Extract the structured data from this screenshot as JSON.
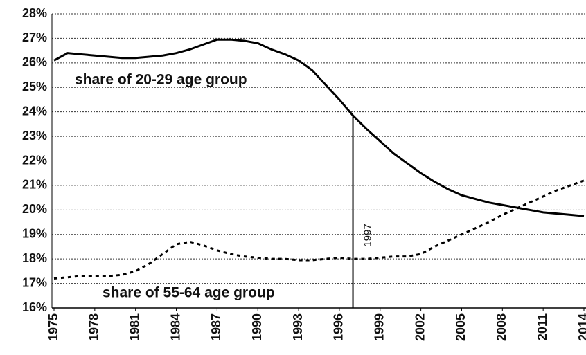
{
  "chart_data": {
    "type": "line",
    "x": [
      1975,
      1976,
      1977,
      1978,
      1979,
      1980,
      1981,
      1982,
      1983,
      1984,
      1985,
      1986,
      1987,
      1988,
      1989,
      1990,
      1991,
      1992,
      1993,
      1994,
      1995,
      1996,
      1997,
      1998,
      1999,
      2000,
      2001,
      2002,
      2003,
      2004,
      2005,
      2006,
      2007,
      2008,
      2009,
      2010,
      2011,
      2012,
      2013,
      2014
    ],
    "series": [
      {
        "name": "share of 20-29 age group",
        "color": "#000000",
        "dash": "solid",
        "values": [
          26.1,
          26.4,
          26.35,
          26.3,
          26.25,
          26.2,
          26.2,
          26.25,
          26.3,
          26.4,
          26.55,
          26.75,
          26.95,
          26.95,
          26.9,
          26.8,
          26.55,
          26.35,
          26.1,
          25.7,
          25.1,
          24.5,
          23.85,
          23.3,
          22.8,
          22.3,
          21.9,
          21.5,
          21.15,
          20.85,
          20.6,
          20.45,
          20.3,
          20.2,
          20.1,
          20.0,
          19.9,
          19.85,
          19.8,
          19.75
        ]
      },
      {
        "name": "share of 55-64 age group",
        "color": "#000000",
        "dash": "dotted",
        "values": [
          17.2,
          17.25,
          17.3,
          17.3,
          17.3,
          17.35,
          17.5,
          17.8,
          18.2,
          18.6,
          18.7,
          18.55,
          18.35,
          18.2,
          18.1,
          18.05,
          18.0,
          18.0,
          17.95,
          17.95,
          18.0,
          18.05,
          18.0,
          18.0,
          18.05,
          18.1,
          18.1,
          18.2,
          18.5,
          18.75,
          19.0,
          19.25,
          19.5,
          19.8,
          20.05,
          20.3,
          20.55,
          20.8,
          21.0,
          21.2
        ]
      }
    ],
    "annotations": [
      {
        "text": "1997",
        "x": 1997
      }
    ],
    "xlim": [
      1975,
      2014
    ],
    "xticks": [
      1975,
      1978,
      1981,
      1984,
      1987,
      1990,
      1993,
      1996,
      1999,
      2002,
      2005,
      2008,
      2011,
      2014
    ],
    "ylim": [
      16,
      28
    ],
    "yticks": [
      {
        "value": 16,
        "label": "16%"
      },
      {
        "value": 17,
        "label": "17%"
      },
      {
        "value": 18,
        "label": "18%"
      },
      {
        "value": 19,
        "label": "19%"
      },
      {
        "value": 20,
        "label": "20%"
      },
      {
        "value": 21,
        "label": "21%"
      },
      {
        "value": 22,
        "label": "22%"
      },
      {
        "value": 23,
        "label": "23%"
      },
      {
        "value": 24,
        "label": "24%"
      },
      {
        "value": 25,
        "label": "25%"
      },
      {
        "value": 26,
        "label": "26%"
      },
      {
        "value": 27,
        "label": "27%"
      },
      {
        "value": 28,
        "label": "28%"
      }
    ],
    "grid": true
  }
}
